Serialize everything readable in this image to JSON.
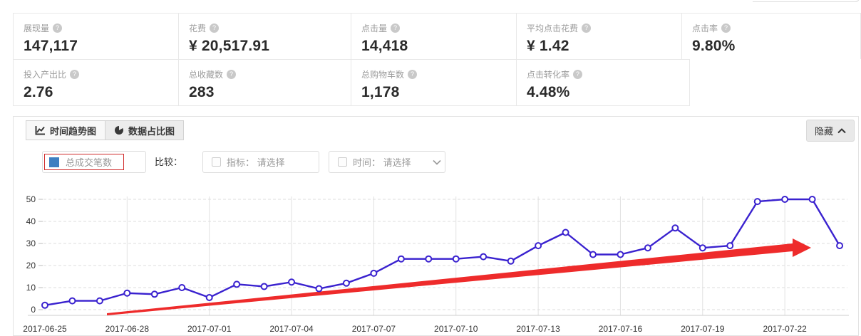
{
  "metrics": {
    "row1": [
      {
        "label": "展现量",
        "value": "147,117"
      },
      {
        "label": "花费",
        "value": "¥ 20,517.91"
      },
      {
        "label": "点击量",
        "value": "14,418"
      },
      {
        "label": "平均点击花费",
        "value": "¥ 1.42"
      },
      {
        "label": "点击率",
        "value": "9.80%"
      }
    ],
    "row2": [
      {
        "label": "投入产出比",
        "value": "2.76"
      },
      {
        "label": "总收藏数",
        "value": "283"
      },
      {
        "label": "总购物车数",
        "value": "1,178"
      },
      {
        "label": "点击转化率",
        "value": "4.48%"
      }
    ],
    "help_icon_glyph": "?"
  },
  "tabs": [
    {
      "label": "时间趋势图",
      "icon": "line-chart-icon",
      "active": true
    },
    {
      "label": "数据占比图",
      "icon": "pie-chart-icon",
      "active": false
    }
  ],
  "hide_button": {
    "label": "隐藏",
    "icon": "chevron-up-icon"
  },
  "controls": {
    "legend_label": "总成交笔数",
    "legend_color": "#3e7fc1",
    "legend_highlight_color": "#d02b2b",
    "compare_label": "比较：",
    "metric_select_text": "指标： 请选择",
    "time_select_text": "时间： 请选择"
  },
  "chart_data": {
    "type": "line",
    "title": "",
    "xlabel": "",
    "ylabel": "",
    "x": [
      "2017-06-25",
      "2017-06-26",
      "2017-06-27",
      "2017-06-28",
      "2017-06-29",
      "2017-06-30",
      "2017-07-01",
      "2017-07-02",
      "2017-07-03",
      "2017-07-04",
      "2017-07-05",
      "2017-07-06",
      "2017-07-07",
      "2017-07-08",
      "2017-07-09",
      "2017-07-10",
      "2017-07-11",
      "2017-07-12",
      "2017-07-13",
      "2017-07-14",
      "2017-07-15",
      "2017-07-16",
      "2017-07-17",
      "2017-07-18",
      "2017-07-19",
      "2017-07-20",
      "2017-07-21",
      "2017-07-22",
      "2017-07-23",
      "2017-07-24"
    ],
    "x_tick_labels": [
      "2017-06-25",
      "2017-06-28",
      "2017-07-01",
      "2017-07-04",
      "2017-07-07",
      "2017-07-10",
      "2017-07-13",
      "2017-07-16",
      "2017-07-19",
      "2017-07-22"
    ],
    "series": [
      {
        "name": "总成交笔数",
        "color": "#3a22cf",
        "values": [
          2,
          4,
          4,
          7.5,
          7,
          10,
          5.5,
          11.5,
          10.5,
          12.5,
          9.5,
          12,
          16.5,
          23,
          23,
          23,
          24,
          22,
          29,
          35,
          25,
          25,
          28,
          37,
          28,
          29,
          49,
          50,
          50,
          29
        ]
      }
    ],
    "ylim": [
      0,
      50
    ],
    "yticks": [
      0,
      10,
      20,
      30,
      40,
      50
    ],
    "grid": "horizontal-dashed, vertical-solid-at-ticks",
    "legend_position": "top-left-as-select",
    "annotation": {
      "type": "trend-arrow",
      "color": "#ee2b2b",
      "from_x": "2017-06-27",
      "from_y": 0,
      "to_x": "2017-07-22",
      "to_y": 29
    }
  }
}
